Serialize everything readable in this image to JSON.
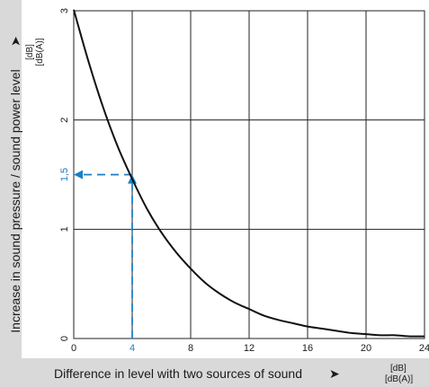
{
  "chart_data": {
    "type": "line",
    "xlabel": "Difference in level with two sources of sound",
    "xlabel_arrow": "➤",
    "xunit": [
      "[dB]",
      "[dB(A)]"
    ],
    "ylabel": "Increase in sound pressure / sound power level",
    "ylabel_arrow": "➤",
    "yunit": [
      "[dB]",
      "[dB(A)]"
    ],
    "xlim": [
      0,
      24
    ],
    "ylim": [
      0,
      3
    ],
    "x_ticks": [
      0,
      4,
      8,
      12,
      16,
      20,
      24
    ],
    "y_ticks": [
      0,
      1,
      2,
      3
    ],
    "grid": true,
    "series": [
      {
        "color": "#111111",
        "x": [
          0,
          1,
          2,
          3,
          4,
          5,
          6,
          7,
          8,
          9,
          10,
          11,
          12,
          13,
          14,
          15,
          16,
          17,
          18,
          19,
          20,
          21,
          22,
          23,
          24
        ],
        "y": [
          3.01,
          2.54,
          2.12,
          1.76,
          1.46,
          1.19,
          0.97,
          0.79,
          0.64,
          0.51,
          0.41,
          0.33,
          0.27,
          0.21,
          0.17,
          0.14,
          0.11,
          0.09,
          0.07,
          0.05,
          0.04,
          0.03,
          0.03,
          0.02,
          0.02
        ]
      }
    ],
    "annotation": {
      "x": 4,
      "y": 1.5,
      "y_label": "1,5",
      "x_label": "4",
      "color": "#1a7fc4"
    },
    "colors": {
      "grid": "#222222",
      "band": "#d9d9d9",
      "accent": "#1a7fc4"
    }
  }
}
